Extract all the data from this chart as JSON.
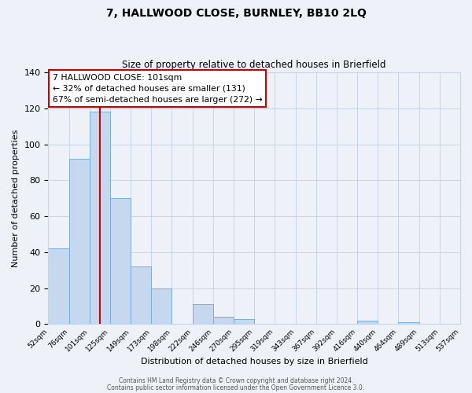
{
  "title": "7, HALLWOOD CLOSE, BURNLEY, BB10 2LQ",
  "subtitle": "Size of property relative to detached houses in Brierfield",
  "xlabel": "Distribution of detached houses by size in Brierfield",
  "ylabel": "Number of detached properties",
  "bar_values": [
    42,
    92,
    118,
    70,
    32,
    20,
    0,
    11,
    4,
    3,
    0,
    0,
    0,
    0,
    0,
    2,
    0,
    1,
    0,
    0
  ],
  "bin_labels": [
    "52sqm",
    "76sqm",
    "101sqm",
    "125sqm",
    "149sqm",
    "173sqm",
    "198sqm",
    "222sqm",
    "246sqm",
    "270sqm",
    "295sqm",
    "319sqm",
    "343sqm",
    "367sqm",
    "392sqm",
    "416sqm",
    "440sqm",
    "464sqm",
    "489sqm",
    "513sqm",
    "537sqm"
  ],
  "bar_color": "#c5d8f0",
  "bar_edge_color": "#7aaed6",
  "vline_color": "#cc0000",
  "annotation_title": "7 HALLWOOD CLOSE: 101sqm",
  "annotation_line1": "← 32% of detached houses are smaller (131)",
  "annotation_line2": "67% of semi-detached houses are larger (272) →",
  "annotation_box_color": "#cc0000",
  "ylim": [
    0,
    140
  ],
  "yticks": [
    0,
    20,
    40,
    60,
    80,
    100,
    120,
    140
  ],
  "footer1": "Contains HM Land Registry data © Crown copyright and database right 2024.",
  "footer2": "Contains public sector information licensed under the Open Government Licence 3.0.",
  "background_color": "#eef2f8",
  "grid_color": "#c8d4e8"
}
